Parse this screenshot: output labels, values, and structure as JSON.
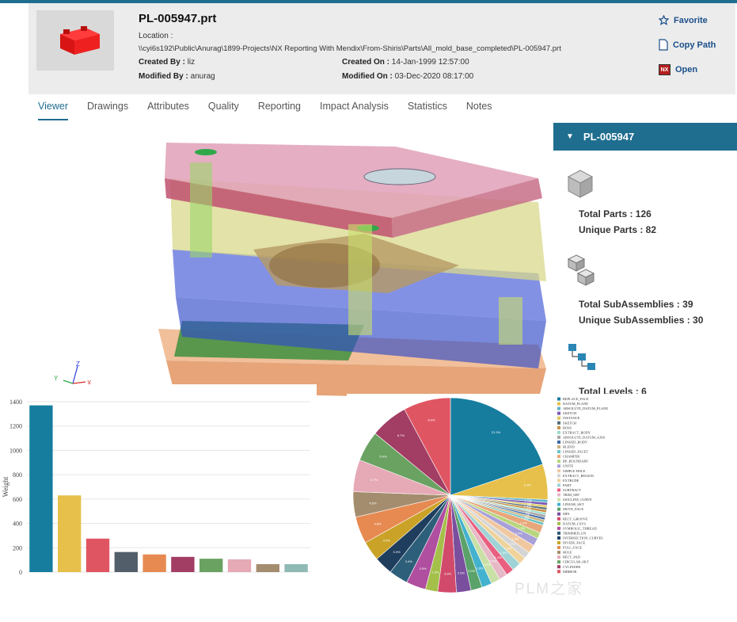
{
  "header": {
    "title": "PL-005947.prt",
    "location_label": "Location :",
    "location_value": "\\\\cyi6s192\\Public\\Anurag\\1899-Projects\\NX Reporting With Mendix\\From-Shiris\\Parts\\All_mold_base_completed\\PL-005947.prt",
    "created_by_label": "Created By :",
    "created_by": "liz",
    "modified_by_label": "Modified By :",
    "modified_by": "anurag",
    "created_on_label": "Created On :",
    "created_on": "14-Jan-1999 12:57:00",
    "modified_on_label": "Modified On :",
    "modified_on": "03-Dec-2020 08:17:00"
  },
  "actions": {
    "favorite": "Favorite",
    "copy_path": "Copy Path",
    "open": "Open",
    "nx_badge": "NX"
  },
  "tabs": [
    "Viewer",
    "Drawings",
    "Attributes",
    "Quality",
    "Reporting",
    "Impact Analysis",
    "Statistics",
    "Notes"
  ],
  "active_tab": "Viewer",
  "axes": {
    "y": "Y",
    "z": "Z",
    "x": "X"
  },
  "side_panel": {
    "title": "PL-005947",
    "total_parts": "Total Parts : 126",
    "unique_parts": "Unique Parts : 82",
    "total_subassemblies": "Total SubAssemblies : 39",
    "unique_subassemblies": "Unique SubAssemblies : 30",
    "total_levels": "Total Levels : 6"
  },
  "colors": {
    "accent": "#1f6e8f",
    "header_bg": "#ececec",
    "link": "#1a4f8a"
  },
  "watermark": "PLM之家",
  "chart_data": [
    {
      "type": "bar",
      "ylabel": "Weight",
      "ylim": [
        0,
        1400
      ],
      "yticks": [
        0,
        200,
        400,
        600,
        800,
        1000,
        1200,
        1400
      ],
      "values": [
        1370,
        630,
        275,
        165,
        145,
        125,
        110,
        105,
        65,
        65
      ],
      "colors": [
        "#167d9f",
        "#e6c04a",
        "#e05562",
        "#525f6a",
        "#e68a52",
        "#a23d64",
        "#6aa262",
        "#e6a9b6",
        "#a48d6e",
        "#8fbab4"
      ]
    },
    {
      "type": "pie",
      "legend": [
        "REPLACE_FACE",
        "DATUM_PLANE",
        "ABSOLUTE_DATUM_PLANE",
        "SKETCH",
        "INSTANCE",
        "SKETCH",
        "BOSS",
        "EXTRACT_BODY",
        "ABSOLUTE_DATUM_AXIS",
        "LINKED_BODY",
        "BLEND",
        "LINKED_FACET",
        "CHAMFER",
        "RP_BOUNDARY",
        "UNITE",
        "SIMPLE HOLE",
        "EXTRACT_REGION",
        "EXTRUDE",
        "PART",
        "SUBTRACT",
        "TRIM_SEP",
        "ISOCLINE_CURVE",
        "LINEAR_SKT",
        "MOVE_FACE",
        "MIN",
        "RECT_GROOVE",
        "DATUM_CSYS",
        "SYMBOLIC_THREAD",
        "TRIMMED_UN",
        "INTERSECTION_CURVES",
        "DIVIDE_FACE",
        "PULL_FACE",
        "HOLE",
        "RECT_PAD",
        "CIRCULAR_SKT",
        "CYLINDER",
        "MIRROR"
      ],
      "values": [
        21.3,
        6.3,
        0.5,
        0.5,
        0.4,
        0.4,
        0.5,
        0.4,
        0.5,
        0.4,
        0.5,
        0.5,
        1.4,
        1.1,
        1.4,
        1.5,
        1.2,
        1.3,
        1.6,
        1.4,
        1.5,
        1.6,
        1.8,
        2.0,
        2.6,
        3.3,
        2.2,
        3.5,
        3.4,
        3.3,
        3.5,
        4.8,
        4.5,
        5.7,
        5.4,
        6.7,
        8.4
      ],
      "colors": [
        "#167d9f",
        "#e6c04a",
        "#5fb2c9",
        "#7a59b5",
        "#e0c95c",
        "#556b77",
        "#c79248",
        "#9adcc8",
        "#a7a7a7",
        "#3c6aa6",
        "#c9b27f",
        "#6bc4c4",
        "#e8a77a",
        "#b8d67e",
        "#a8a0d8",
        "#f0c8a0",
        "#d4d4d4",
        "#efd39b",
        "#9fd3d6",
        "#e85f7f",
        "#e6b9c6",
        "#c9e0a6",
        "#43b2ce",
        "#5ba26a",
        "#7a4f9e",
        "#d14a6b",
        "#a4c04a",
        "#b04e9f",
        "#2d5f7a",
        "#1f3e5e",
        "#c9a227",
        "#e68a52",
        "#a48d6e",
        "#e6a9b6",
        "#6aa262",
        "#a23d64",
        "#e05562"
      ]
    }
  ]
}
